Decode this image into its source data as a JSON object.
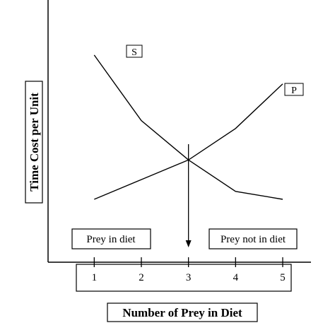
{
  "chart_data": {
    "type": "line",
    "x": [
      1,
      2,
      3,
      4,
      5
    ],
    "xlim": [
      0.02,
      5.6
    ],
    "ylim": [
      0,
      10
    ],
    "series": [
      {
        "name": "S",
        "values": [
          7.9,
          5.4,
          3.9,
          2.7,
          2.4
        ]
      },
      {
        "name": "P",
        "values": [
          2.4,
          3.15,
          3.9,
          5.1,
          6.8
        ]
      }
    ],
    "tick_labels": [
      "1",
      "2",
      "3",
      "4",
      "5"
    ],
    "xlabel": "Number of Prey in Diet",
    "ylabel": "Time Cost per Unit",
    "annotations": {
      "prey_in_diet": "Prey in diet",
      "prey_not_in_diet": "Prey not in diet",
      "optimum_marker_x": 3
    },
    "grid": false
  }
}
